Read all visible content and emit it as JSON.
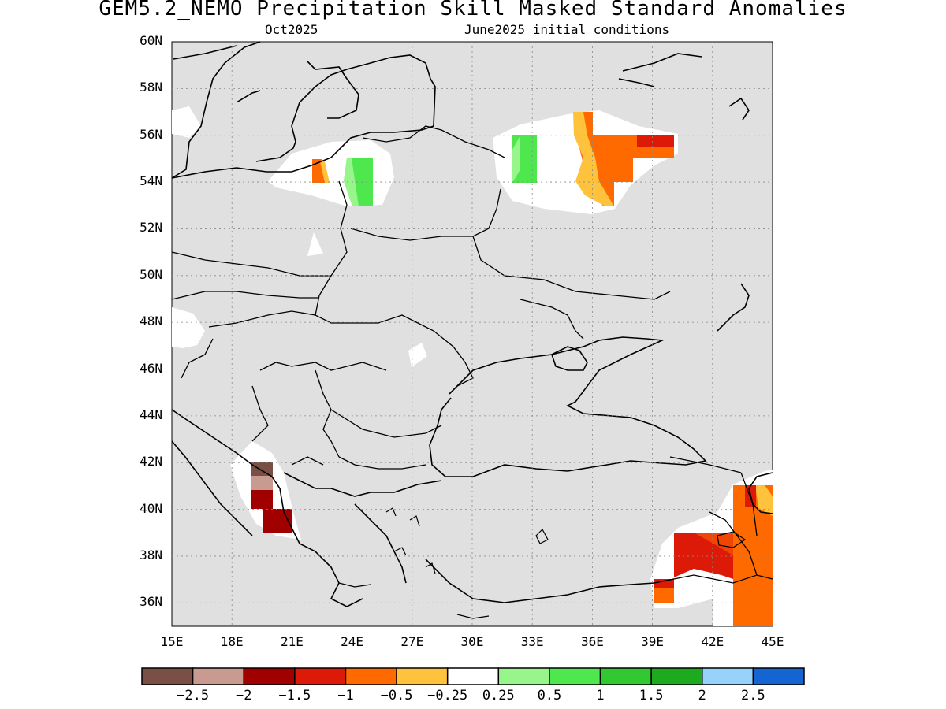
{
  "header": {
    "title": "GEM5.2_NEMO Precipitation Skill Masked Standard Anomalies",
    "valid_month": "Oct2025",
    "init": "June2025 initial conditions"
  },
  "axes": {
    "lat_labels": [
      "60N",
      "58N",
      "56N",
      "54N",
      "52N",
      "50N",
      "48N",
      "46N",
      "44N",
      "42N",
      "40N",
      "38N",
      "36N"
    ],
    "lon_labels": [
      "15E",
      "18E",
      "21E",
      "24E",
      "27E",
      "30E",
      "33E",
      "36E",
      "39E",
      "42E",
      "45E"
    ]
  },
  "colorbar": {
    "colors": [
      "#7a4f45",
      "#c99a90",
      "#a00000",
      "#dd1a08",
      "#ff6a00",
      "#ffc23c",
      "#ffffff",
      "#98f58c",
      "#4ee84e",
      "#32c832",
      "#1eaa1e",
      "#96d2fa",
      "#1464d2"
    ],
    "labels": [
      "−2.5",
      "−2",
      "−1.5",
      "−1",
      "−0.5",
      "−0.25",
      "0.25",
      "0.5",
      "1",
      "1.5",
      "2",
      "2.5"
    ]
  },
  "map_colors": {
    "land_masked": "#e0e0e0",
    "no_signal": "#ffffff",
    "coast": "#000000"
  }
}
